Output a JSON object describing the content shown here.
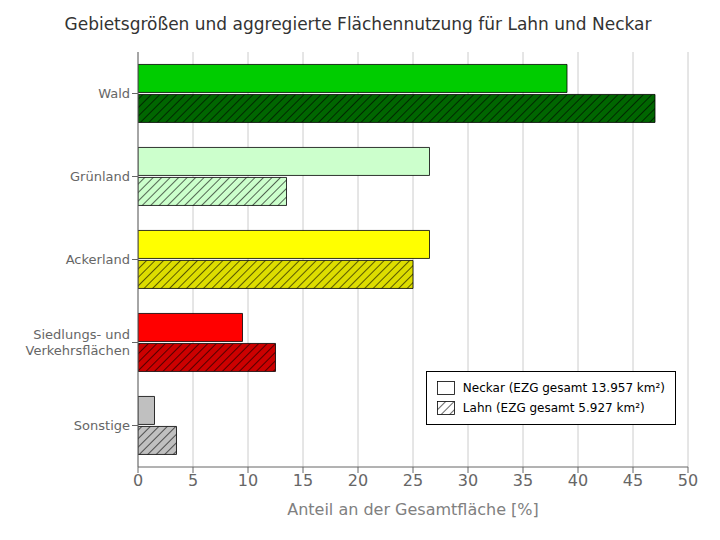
{
  "chart_data": {
    "type": "bar",
    "orientation": "horizontal",
    "title": "Gebietsgrößen und aggregierte Flächennutzung für Lahn und Neckar",
    "x_label": "Anteil an der Gesamtfläche [%]",
    "categories": [
      "Sonstige",
      "Siedlungs- und\nVerkehrsflächen",
      "Ackerland",
      "Grünland",
      "Wald"
    ],
    "series": [
      {
        "name": "Neckar (EZG gesamt 13.957 km²)",
        "colors": [
          "#c0c0c0",
          "#ff0000",
          "#ffff00",
          "#ccffcc",
          "#00cc00"
        ],
        "values": [
          1.5,
          9.5,
          26.5,
          26.5,
          39.0
        ]
      },
      {
        "name": "Lahn (EZG gesamt 5.927 km²)",
        "colors": [
          "#c0c0c0",
          "#cc0000",
          "#dddd00",
          "#ccffcc",
          "#006600"
        ],
        "values": [
          3.5,
          12.5,
          25.0,
          13.5,
          47.0
        ]
      }
    ],
    "xlim": [
      0,
      50
    ],
    "xticks": [
      0,
      5,
      10,
      15,
      20,
      25,
      30,
      35,
      40,
      45,
      50
    ],
    "grid": true,
    "legend": "lower right"
  }
}
